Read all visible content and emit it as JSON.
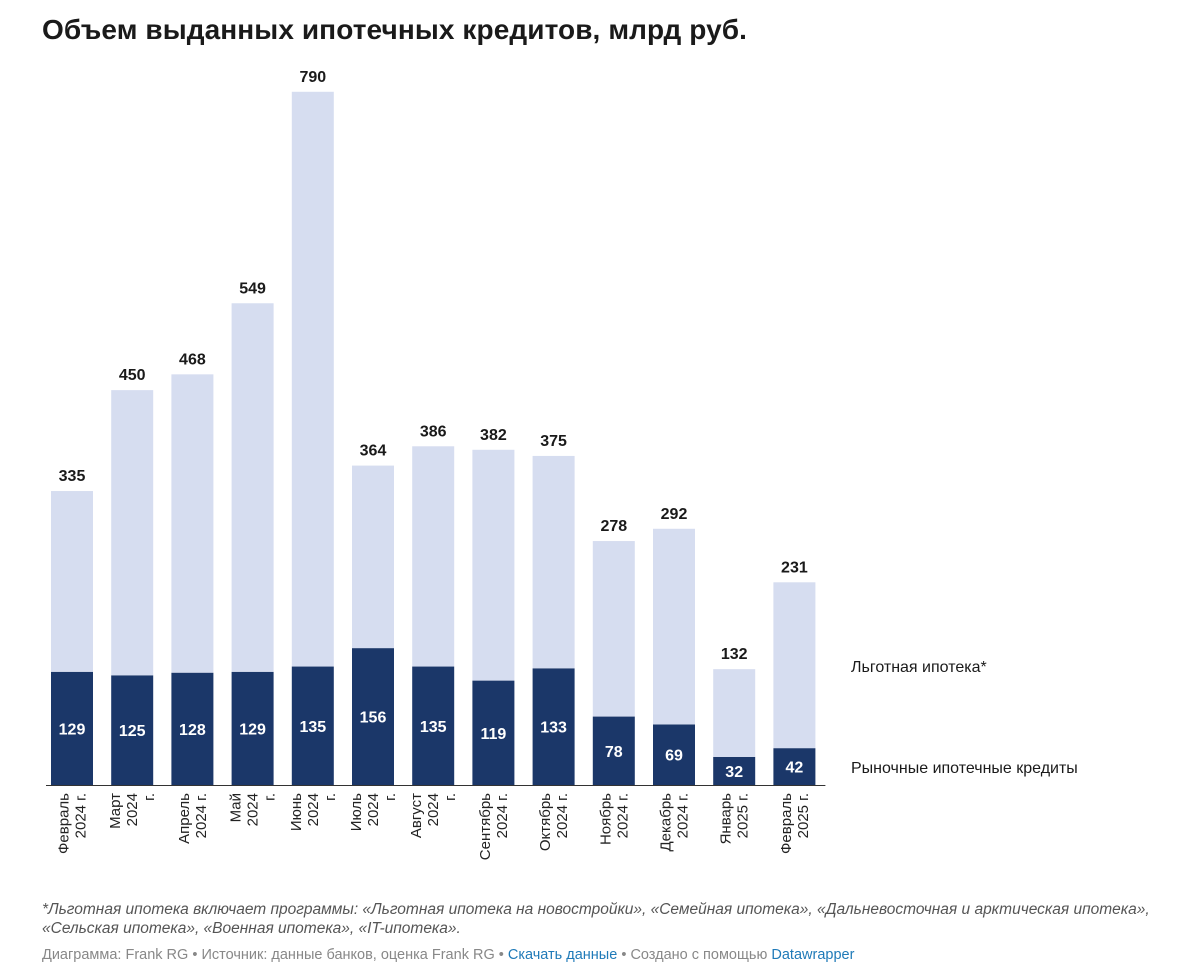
{
  "chart_data": {
    "type": "bar",
    "stacked": true,
    "title": "Объем выданных ипотечных кредитов, млрд руб.",
    "categories": [
      [
        "Февраль",
        "2024 г."
      ],
      [
        "Март",
        "2024",
        "г."
      ],
      [
        "Апрель",
        "2024 г."
      ],
      [
        "Май",
        "2024",
        "г."
      ],
      [
        "Июнь",
        "2024",
        "г."
      ],
      [
        "Июль",
        "2024",
        "г."
      ],
      [
        "Август",
        "2024",
        "г."
      ],
      [
        "Сентябрь",
        "2024 г."
      ],
      [
        "Октябрь",
        "2024 г."
      ],
      [
        "Ноябрь",
        "2024 г."
      ],
      [
        "Декабрь",
        "2024 г."
      ],
      [
        "Январь",
        "2025 г."
      ],
      [
        "Февраль",
        "2025 г."
      ]
    ],
    "totals": [
      335,
      450,
      468,
      549,
      790,
      364,
      386,
      382,
      375,
      278,
      292,
      132,
      231
    ],
    "series": [
      {
        "name": "Рыночные ипотечные кредиты",
        "color": "#1b3769",
        "values": [
          129,
          125,
          128,
          129,
          135,
          156,
          135,
          119,
          133,
          78,
          69,
          32,
          42
        ]
      },
      {
        "name": "Льготная ипотека*",
        "color": "#d6ddf0",
        "values": [
          206,
          325,
          340,
          420,
          655,
          208,
          251,
          263,
          242,
          200,
          223,
          100,
          189
        ]
      }
    ],
    "ylim": [
      0,
      800
    ],
    "xlabel": "",
    "ylabel": "",
    "grid": false,
    "legend_position": "right"
  },
  "legend": {
    "preferential": "Льготная ипотека*",
    "market": "Рыночные ипотечные кредиты"
  },
  "note": "*Льготная ипотека включает программы: «Льготная ипотека на новостройки», «Семейная ипотека», «Дальневосточная и арктическая ипотека», «Сельская ипотека», «Военная ипотека», «IT-ипотека».",
  "footer": {
    "chart_by": "Диаграмма: Frank RG",
    "sep1": " • ",
    "source": "Источник: данные банков, оценка Frank RG",
    "sep2": " • ",
    "download": "Скачать данные",
    "sep3": " • ",
    "made_with": "Создано с помощью ",
    "tool": "Datawrapper"
  }
}
